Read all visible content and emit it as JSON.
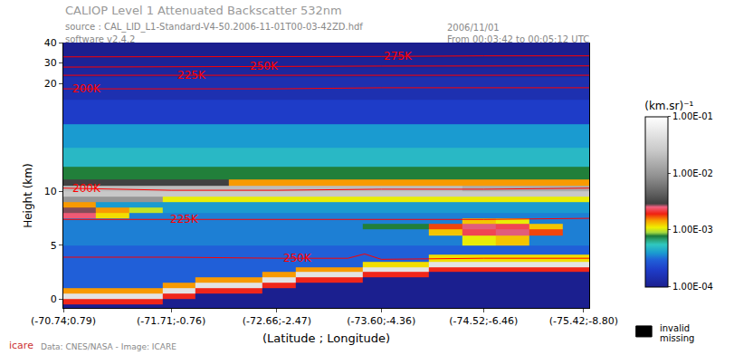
{
  "chart_data": {
    "type": "heatmap",
    "title": "CALIOP Level 1 Attenuated Backscatter 532nm",
    "annotations": [
      "source : CAL_LID_L1-Standard-V4-50.2006-11-01T00-03-42ZD.hdf",
      "software v2.4.2",
      "2006/11/01",
      "From 00:03:42 to 00:05:12 UTC",
      "Data: CNES/NASA - Image: ICARE",
      "icare",
      "invalid",
      "missing"
    ],
    "x_label": "(Latitude ; Longitude)",
    "y_label": "Height (km)",
    "grid": false,
    "xlim": [
      -70.74,
      -75.47
    ],
    "xticks": [
      {
        "value": -70.74,
        "label": "(-70.74;0.79)"
      },
      {
        "value": -71.71,
        "label": "(-71.71;-0.76)"
      },
      {
        "value": -72.66,
        "label": "(-72.66;-2.47)"
      },
      {
        "value": -73.6,
        "label": "(-73.60;-4.36)"
      },
      {
        "value": -74.52,
        "label": "(-74.52;-6.46)"
      },
      {
        "value": -75.42,
        "label": "(-75.42;-8.80)"
      }
    ],
    "ylim": [
      -0.8,
      20
    ],
    "yticks": [
      0,
      5,
      10,
      20
    ],
    "y2lim": [
      20,
      40
    ],
    "y2ticks": [
      30,
      40
    ],
    "x": [
      -70.88,
      -71.18,
      -71.48,
      -71.78,
      -72.08,
      -72.38,
      -72.68,
      -72.98,
      -73.28,
      -73.58,
      -73.88,
      -74.18,
      -74.48,
      -74.78,
      -75.08,
      -75.38
    ],
    "y": [
      -0.75,
      -0.25,
      0.25,
      0.75,
      1.25,
      1.75,
      2.25,
      2.75,
      3.25,
      3.75,
      4.5,
      5.5,
      6.25,
      6.75,
      7.25,
      7.75,
      8.25,
      8.75,
      9.25,
      9.75,
      10.25,
      10.75,
      11.5,
      13,
      15,
      17.5,
      19.5,
      21,
      25,
      30,
      35,
      39.5
    ],
    "cells": [
      [
        0.0001,
        0.0001,
        0.0001,
        0.0001,
        0.0001,
        0.0001,
        0.0001,
        0.0001,
        0.0001,
        0.0001,
        0.0001,
        0.0001,
        0.0001,
        0.0001,
        0.0001,
        0.0001
      ],
      [
        0.002,
        0.002,
        0.002,
        0.0001,
        0.0001,
        0.0001,
        0.0001,
        0.0001,
        0.0001,
        0.0001,
        0.0001,
        0.0001,
        0.0001,
        0.0001,
        0.0001,
        0.0001
      ],
      [
        0.05,
        0.05,
        0.05,
        0.002,
        0.0001,
        0.0001,
        0.0001,
        0.0001,
        0.0001,
        0.0001,
        0.0001,
        0.0001,
        0.0001,
        0.0001,
        0.0001,
        0.0001
      ],
      [
        0.0015,
        0.0015,
        0.0015,
        0.05,
        0.002,
        0.002,
        0.0001,
        0.0001,
        0.0001,
        0.0001,
        0.0001,
        0.0001,
        0.0001,
        0.0001,
        0.0001,
        0.0001
      ],
      [
        0.0003,
        0.0003,
        0.0003,
        0.0015,
        0.05,
        0.05,
        0.002,
        0.0001,
        0.0001,
        0.0001,
        0.0001,
        0.0001,
        0.0001,
        0.0001,
        0.0001,
        0.0001
      ],
      [
        0.0003,
        0.0003,
        0.0003,
        0.0003,
        0.0015,
        0.0015,
        0.05,
        0.002,
        0.002,
        0.0001,
        0.0001,
        0.0001,
        0.0001,
        0.0001,
        0.0001,
        0.0001
      ],
      [
        0.0003,
        0.0003,
        0.0003,
        0.0003,
        0.0003,
        0.0003,
        0.0015,
        0.05,
        0.05,
        0.002,
        0.002,
        0.0001,
        0.0001,
        0.0001,
        0.0001,
        0.0001
      ],
      [
        0.0003,
        0.0003,
        0.0003,
        0.0003,
        0.0003,
        0.0003,
        0.0003,
        0.0015,
        0.0015,
        0.05,
        0.05,
        0.002,
        0.002,
        0.002,
        0.002,
        0.002
      ],
      [
        0.0003,
        0.0003,
        0.0003,
        0.0003,
        0.0003,
        0.0003,
        0.0003,
        0.0003,
        0.0003,
        0.0012,
        0.0012,
        0.05,
        0.05,
        0.05,
        0.05,
        0.05
      ],
      [
        0.0003,
        0.0003,
        0.0003,
        0.0003,
        0.0003,
        0.0003,
        0.0003,
        0.0003,
        0.0003,
        0.0003,
        0.0003,
        0.0012,
        0.0012,
        0.0012,
        0.0012,
        0.0012
      ],
      [
        0.0003,
        0.0003,
        0.0003,
        0.0003,
        0.0003,
        0.0003,
        0.0003,
        0.0003,
        0.0003,
        0.0003,
        0.0003,
        0.0003,
        0.0003,
        0.0003,
        0.0003,
        0.0003
      ],
      [
        0.00035,
        0.00035,
        0.00035,
        0.00035,
        0.00035,
        0.00035,
        0.00035,
        0.00035,
        0.00035,
        0.00035,
        0.00035,
        0.00035,
        0.0011,
        0.0013,
        0.00035,
        0.00035
      ],
      [
        0.00035,
        0.00035,
        0.00035,
        0.00035,
        0.00035,
        0.00035,
        0.00035,
        0.00035,
        0.00035,
        0.00035,
        0.00035,
        0.0013,
        0.0023,
        0.0026,
        0.0018,
        0.00035
      ],
      [
        0.00035,
        0.00035,
        0.00035,
        0.00035,
        0.00035,
        0.00035,
        0.00035,
        0.00035,
        0.00035,
        0.0008,
        0.0008,
        0.0018,
        0.0026,
        0.0023,
        0.0013,
        0.00035
      ],
      [
        0.00035,
        0.00035,
        0.00035,
        0.00035,
        0.00035,
        0.00035,
        0.00035,
        0.00035,
        0.00035,
        0.00035,
        0.00035,
        0.00035,
        0.0013,
        0.0011,
        0.00035,
        0.00035
      ],
      [
        0.0025,
        0.0012,
        0.00035,
        0.00035,
        0.00035,
        0.00035,
        0.00035,
        0.00035,
        0.00035,
        0.00035,
        0.00035,
        0.00035,
        0.00035,
        0.00035,
        0.00035,
        0.00035
      ],
      [
        0.0028,
        0.0015,
        0.001,
        0.0004,
        0.0004,
        0.0004,
        0.0004,
        0.0004,
        0.0004,
        0.0004,
        0.0004,
        0.0004,
        0.0004,
        0.0004,
        0.0004,
        0.0004
      ],
      [
        0.0015,
        0.0004,
        0.0004,
        0.0004,
        0.0004,
        0.0004,
        0.0004,
        0.0004,
        0.0004,
        0.0004,
        0.0004,
        0.0004,
        0.0004,
        0.0004,
        0.0004,
        0.0004
      ],
      [
        0.01,
        0.01,
        0.01,
        0.0011,
        0.0011,
        0.0011,
        0.0011,
        0.0011,
        0.0011,
        0.0011,
        0.0011,
        0.0011,
        0.0011,
        0.0011,
        0.0011,
        0.0011
      ],
      [
        0.025,
        0.025,
        0.025,
        0.025,
        0.025,
        0.025,
        0.025,
        0.025,
        0.025,
        0.025,
        0.025,
        0.025,
        0.025,
        0.025,
        0.025,
        0.025
      ],
      [
        0.02,
        0.02,
        0.02,
        0.02,
        0.02,
        0.02,
        0.02,
        0.02,
        0.02,
        0.02,
        0.02,
        0.02,
        0.015,
        0.015,
        0.015,
        0.015
      ],
      [
        0.003,
        0.003,
        0.003,
        0.003,
        0.003,
        0.0015,
        0.0015,
        0.0015,
        0.0015,
        0.0015,
        0.0015,
        0.0015,
        0.0015,
        0.0015,
        0.0015,
        0.0015
      ],
      [
        0.0008,
        0.0008,
        0.0008,
        0.0008,
        0.0008,
        0.0008,
        0.0008,
        0.0008,
        0.0008,
        0.0008,
        0.0008,
        0.0008,
        0.0008,
        0.0008,
        0.0008,
        0.0008
      ],
      [
        0.0005,
        0.0005,
        0.0005,
        0.0005,
        0.0005,
        0.0005,
        0.0005,
        0.0005,
        0.0005,
        0.0005,
        0.0005,
        0.0005,
        0.0005,
        0.0005,
        0.0005,
        0.0005
      ],
      [
        0.0004,
        0.0004,
        0.0004,
        0.0004,
        0.0004,
        0.0004,
        0.0004,
        0.0004,
        0.0004,
        0.0004,
        0.0004,
        0.0004,
        0.0004,
        0.0004,
        0.0004,
        0.0004
      ],
      [
        0.0002,
        0.0002,
        0.0002,
        0.0002,
        0.0002,
        0.0002,
        0.0002,
        0.0002,
        0.0002,
        0.0002,
        0.0002,
        0.0002,
        0.0002,
        0.0002,
        0.0002,
        0.0002
      ],
      [
        0.00015,
        0.00015,
        0.00015,
        0.00015,
        0.00015,
        0.00015,
        0.00015,
        0.00015,
        0.00015,
        0.00015,
        0.00015,
        0.00015,
        0.00015,
        0.00015,
        0.00015,
        0.00015
      ],
      [
        0.00015,
        0.00015,
        0.00015,
        0.00015,
        0.00015,
        0.00015,
        0.00015,
        0.00015,
        0.00015,
        0.00015,
        0.00015,
        0.00015,
        0.00015,
        0.00015,
        0.00015,
        0.00015
      ],
      [
        0.00012,
        0.00012,
        0.00012,
        0.00012,
        0.00012,
        0.00012,
        0.00012,
        0.00012,
        0.00012,
        0.00012,
        0.00012,
        0.00012,
        0.00012,
        0.00012,
        0.00012,
        0.00012
      ],
      [
        0.00011,
        0.00011,
        0.00011,
        0.00011,
        0.00011,
        0.00011,
        0.00011,
        0.00011,
        0.00011,
        0.00011,
        0.00011,
        0.00011,
        0.00011,
        0.00011,
        0.00011,
        0.00011
      ],
      [
        0.0001,
        0.0001,
        0.0001,
        0.0001,
        0.0001,
        0.0001,
        0.0001,
        0.0001,
        0.0001,
        0.0001,
        0.0001,
        0.0001,
        0.0001,
        0.0001,
        0.0001,
        0.0001
      ],
      [
        0.0001,
        0.0001,
        0.0001,
        0.0001,
        0.0001,
        0.0001,
        0.0001,
        0.0001,
        0.0001,
        0.0001,
        0.0001,
        0.0001,
        0.0001,
        0.0001,
        0.0001,
        0.0001
      ]
    ],
    "colorbar_range": [
      0.0001,
      0.1
    ],
    "colorbar_ticks": [
      {
        "value": 0.0001,
        "label": "1.00E-04"
      },
      {
        "value": 0.001,
        "label": "1.00E-03"
      },
      {
        "value": 0.01,
        "label": "1.00E-02"
      },
      {
        "value": 0.1,
        "label": "1.00E-01"
      }
    ],
    "colorbar_title": "(km.sr)⁻¹",
    "series": [
      {
        "name": "200K",
        "color": "#ff0000",
        "x": [
          -70.74,
          -71.71,
          -72.66,
          -73.6,
          -74.52,
          -75.47
        ],
        "values": [
          10.3,
          10.1,
          10.1,
          10.2,
          10.2,
          10.3
        ],
        "label_x": -70.95
      },
      {
        "name": "225K",
        "color": "#ff0000",
        "x": [
          -70.74,
          -71.71,
          -72.66,
          -73.6,
          -74.52,
          -75.47
        ],
        "values": [
          7.4,
          7.4,
          7.4,
          7.4,
          7.4,
          7.5
        ],
        "label_x": -71.83
      },
      {
        "name": "250K",
        "color": "#ff0000",
        "x": [
          -70.74,
          -71.71,
          -72.66,
          -73.3,
          -73.45,
          -73.6,
          -74.52,
          -75.47
        ],
        "values": [
          3.9,
          3.9,
          3.8,
          3.8,
          4.2,
          3.7,
          3.8,
          3.8
        ],
        "label_x": -72.85
      },
      {
        "name": "200K",
        "color": "#ff0000",
        "x": [
          -70.74,
          -71.71,
          -72.66,
          -73.6,
          -74.52,
          -75.47
        ],
        "values": [
          19.5,
          19.5,
          19.5,
          19.6,
          19.6,
          19.6
        ],
        "label_x": -70.95
      },
      {
        "name": "225K",
        "color": "#ff0000",
        "x": [
          -70.74,
          -71.71,
          -72.66,
          -73.6,
          -74.52,
          -75.47
        ],
        "values": [
          24,
          24,
          24,
          24,
          24,
          24
        ],
        "label_x": -71.9,
        "axis": "y2"
      },
      {
        "name": "250K",
        "color": "#ff0000",
        "x": [
          -70.74,
          -71.71,
          -72.66,
          -73.6,
          -74.52,
          -75.47
        ],
        "values": [
          28,
          28,
          28.3,
          28.5,
          28.5,
          28.6
        ],
        "label_x": -72.55,
        "axis": "y2"
      },
      {
        "name": "275K",
        "color": "#ff0000",
        "x": [
          -70.74,
          -71.71,
          -72.66,
          -73.6,
          -74.52,
          -75.47
        ],
        "values": [
          33,
          33,
          33,
          33.2,
          33.5,
          33.5
        ],
        "label_x": -73.75,
        "axis": "y2"
      }
    ]
  }
}
